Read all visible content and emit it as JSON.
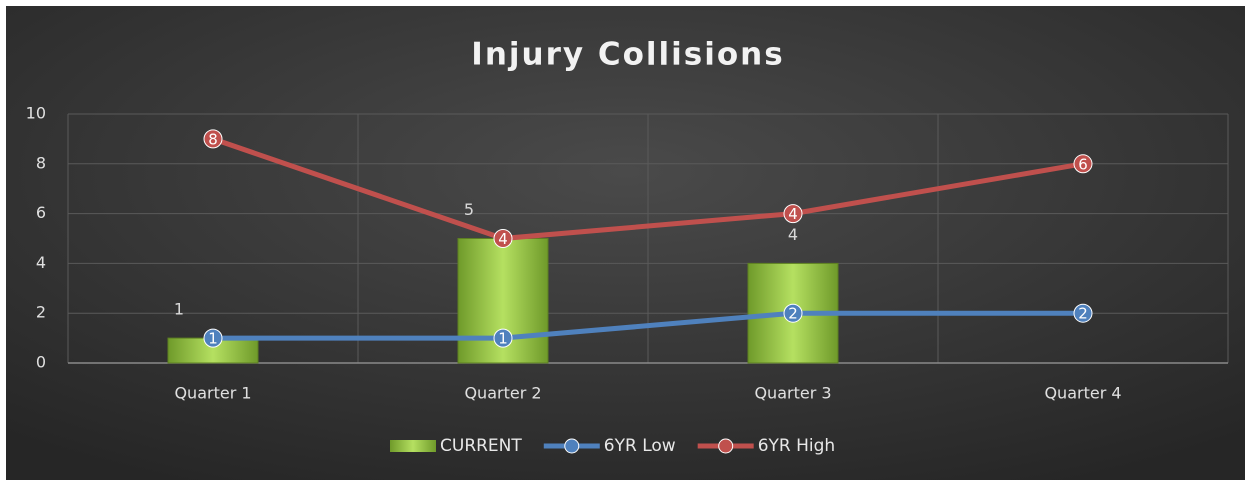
{
  "chart_data": {
    "type": "bar_line",
    "title": "Injury Collisions",
    "categories": [
      "Quarter 1",
      "Quarter 2",
      "Quarter 3",
      "Quarter 4"
    ],
    "series": [
      {
        "name": "CURRENT",
        "type": "bar",
        "color": "#8cc63e",
        "values": [
          1,
          5,
          4,
          null
        ]
      },
      {
        "name": "6YR Low",
        "type": "line",
        "color": "#4f81bd",
        "values": [
          1,
          1,
          2,
          2
        ]
      },
      {
        "name": "6YR High",
        "type": "line",
        "color": "#c0504d",
        "values": [
          8,
          4,
          4,
          6
        ],
        "stacked": true
      }
    ],
    "ylim": [
      0,
      10
    ],
    "yticks": [
      0,
      2,
      4,
      6,
      8,
      10
    ],
    "grid": true,
    "legend": "bottom"
  }
}
